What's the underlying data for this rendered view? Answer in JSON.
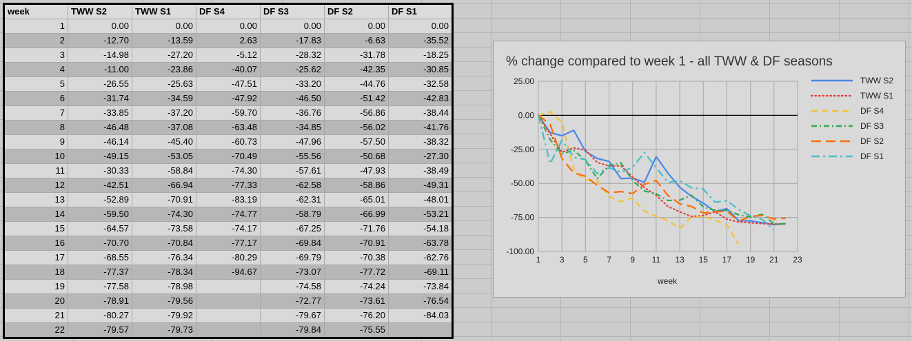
{
  "table": {
    "headers": [
      "week",
      "TWW S2",
      "TWW S1",
      "DF S4",
      "DF S3",
      "DF S2",
      "DF S1"
    ],
    "rows": [
      [
        "1",
        "0.00",
        "0.00",
        "0.00",
        "0.00",
        "0.00",
        "0.00"
      ],
      [
        "2",
        "-12.70",
        "-13.59",
        "2.63",
        "-17.83",
        "-6.63",
        "-35.52"
      ],
      [
        "3",
        "-14.98",
        "-27.20",
        "-5.12",
        "-28.32",
        "-31.78",
        "-18.25"
      ],
      [
        "4",
        "-11.00",
        "-23.86",
        "-40.07",
        "-25.62",
        "-42.35",
        "-30.85"
      ],
      [
        "5",
        "-26.55",
        "-25.63",
        "-47.51",
        "-33.20",
        "-44.76",
        "-32.58"
      ],
      [
        "6",
        "-31.74",
        "-34.59",
        "-47.92",
        "-46.50",
        "-51.42",
        "-42.83"
      ],
      [
        "7",
        "-33.85",
        "-37.20",
        "-59.70",
        "-36.76",
        "-56.86",
        "-38.44"
      ],
      [
        "8",
        "-46.48",
        "-37.08",
        "-63.48",
        "-34.85",
        "-56.02",
        "-41.76"
      ],
      [
        "9",
        "-46.14",
        "-45.40",
        "-60.73",
        "-47.96",
        "-57.50",
        "-38.32"
      ],
      [
        "10",
        "-49.15",
        "-53.05",
        "-70.49",
        "-55.56",
        "-50.68",
        "-27.30"
      ],
      [
        "11",
        "-30.33",
        "-58.84",
        "-74.30",
        "-57.61",
        "-47.93",
        "-38.49"
      ],
      [
        "12",
        "-42.51",
        "-66.94",
        "-77.33",
        "-62.58",
        "-58.86",
        "-49.31"
      ],
      [
        "13",
        "-52.89",
        "-70.91",
        "-83.19",
        "-62.31",
        "-65.01",
        "-48.01"
      ],
      [
        "14",
        "-59.50",
        "-74.30",
        "-74.77",
        "-58.79",
        "-66.99",
        "-53.21"
      ],
      [
        "15",
        "-64.57",
        "-73.58",
        "-74.17",
        "-67.25",
        "-71.76",
        "-54.18"
      ],
      [
        "16",
        "-70.70",
        "-70.84",
        "-77.17",
        "-69.84",
        "-70.91",
        "-63.78"
      ],
      [
        "17",
        "-68.55",
        "-76.34",
        "-80.29",
        "-69.79",
        "-70.38",
        "-62.76"
      ],
      [
        "18",
        "-77.37",
        "-78.34",
        "-94.67",
        "-73.07",
        "-77.72",
        "-69.11"
      ],
      [
        "19",
        "-77.58",
        "-78.98",
        "",
        "-74.58",
        "-74.24",
        "-73.84"
      ],
      [
        "20",
        "-78.91",
        "-79.56",
        "",
        "-72.77",
        "-73.61",
        "-76.54"
      ],
      [
        "21",
        "-80.27",
        "-79.92",
        "",
        "-79.67",
        "-76.20",
        "-84.03"
      ],
      [
        "22",
        "-79.57",
        "-79.73",
        "",
        "-79.84",
        "-75.55",
        ""
      ]
    ]
  },
  "chart_data": {
    "type": "line",
    "title": "% change compared to week 1 - all TWW & DF seasons",
    "xlabel": "week",
    "ylabel": "",
    "xlim": [
      1,
      23
    ],
    "ylim": [
      -100,
      25
    ],
    "xticks": [
      1,
      3,
      5,
      7,
      9,
      11,
      13,
      15,
      17,
      19,
      21,
      23
    ],
    "yticks": [
      25,
      0,
      -25,
      -50,
      -75,
      -100
    ],
    "ytick_labels": [
      "25.00",
      "0.00",
      "-25.00",
      "-50.00",
      "-75.00",
      "-100.00"
    ],
    "grid": true,
    "legend": "right",
    "x": [
      1,
      2,
      3,
      4,
      5,
      6,
      7,
      8,
      9,
      10,
      11,
      12,
      13,
      14,
      15,
      16,
      17,
      18,
      19,
      20,
      21,
      22
    ],
    "series": [
      {
        "name": "TWW S2",
        "color": "#4a86e8",
        "dash": "solid",
        "values": [
          0,
          -12.7,
          -14.98,
          -11.0,
          -26.55,
          -31.74,
          -33.85,
          -46.48,
          -46.14,
          -49.15,
          -30.33,
          -42.51,
          -52.89,
          -59.5,
          -64.57,
          -70.7,
          -68.55,
          -77.37,
          -77.58,
          -78.91,
          -80.27,
          -79.57
        ]
      },
      {
        "name": "TWW S1",
        "color": "#e0413a",
        "dash": "dotted",
        "values": [
          0,
          -13.59,
          -27.2,
          -23.86,
          -25.63,
          -34.59,
          -37.2,
          -37.08,
          -45.4,
          -53.05,
          -58.84,
          -66.94,
          -70.91,
          -74.3,
          -73.58,
          -70.84,
          -76.34,
          -78.34,
          -78.98,
          -79.56,
          -79.92,
          -79.73
        ]
      },
      {
        "name": "DF S4",
        "color": "#f4c232",
        "dash": "dashed",
        "values": [
          0,
          2.63,
          -5.12,
          -40.07,
          -47.51,
          -47.92,
          -59.7,
          -63.48,
          -60.73,
          -70.49,
          -74.3,
          -77.33,
          -83.19,
          -74.77,
          -74.17,
          -77.17,
          -80.29,
          -94.67,
          null,
          null,
          null,
          null
        ]
      },
      {
        "name": "DF S3",
        "color": "#34a853",
        "dash": "dashdot",
        "values": [
          0,
          -17.83,
          -28.32,
          -25.62,
          -33.2,
          -46.5,
          -36.76,
          -34.85,
          -47.96,
          -55.56,
          -57.61,
          -62.58,
          -62.31,
          -58.79,
          -67.25,
          -69.84,
          -69.79,
          -73.07,
          -74.58,
          -72.77,
          -79.67,
          -79.84
        ]
      },
      {
        "name": "DF S2",
        "color": "#ff6d01",
        "dash": "longdash",
        "values": [
          0,
          -6.63,
          -31.78,
          -42.35,
          -44.76,
          -51.42,
          -56.86,
          -56.02,
          -57.5,
          -50.68,
          -47.93,
          -58.86,
          -65.01,
          -66.99,
          -71.76,
          -70.91,
          -70.38,
          -77.72,
          -74.24,
          -73.61,
          -76.2,
          -75.55
        ]
      },
      {
        "name": "DF S1",
        "color": "#46bdc6",
        "dash": "longdashdot",
        "values": [
          0,
          -35.52,
          -18.25,
          -30.85,
          -32.58,
          -42.83,
          -38.44,
          -41.76,
          -38.32,
          -27.3,
          -38.49,
          -49.31,
          -48.01,
          -53.21,
          -54.18,
          -63.78,
          -62.76,
          -69.11,
          -73.84,
          -76.54,
          -84.03,
          null
        ]
      }
    ]
  }
}
